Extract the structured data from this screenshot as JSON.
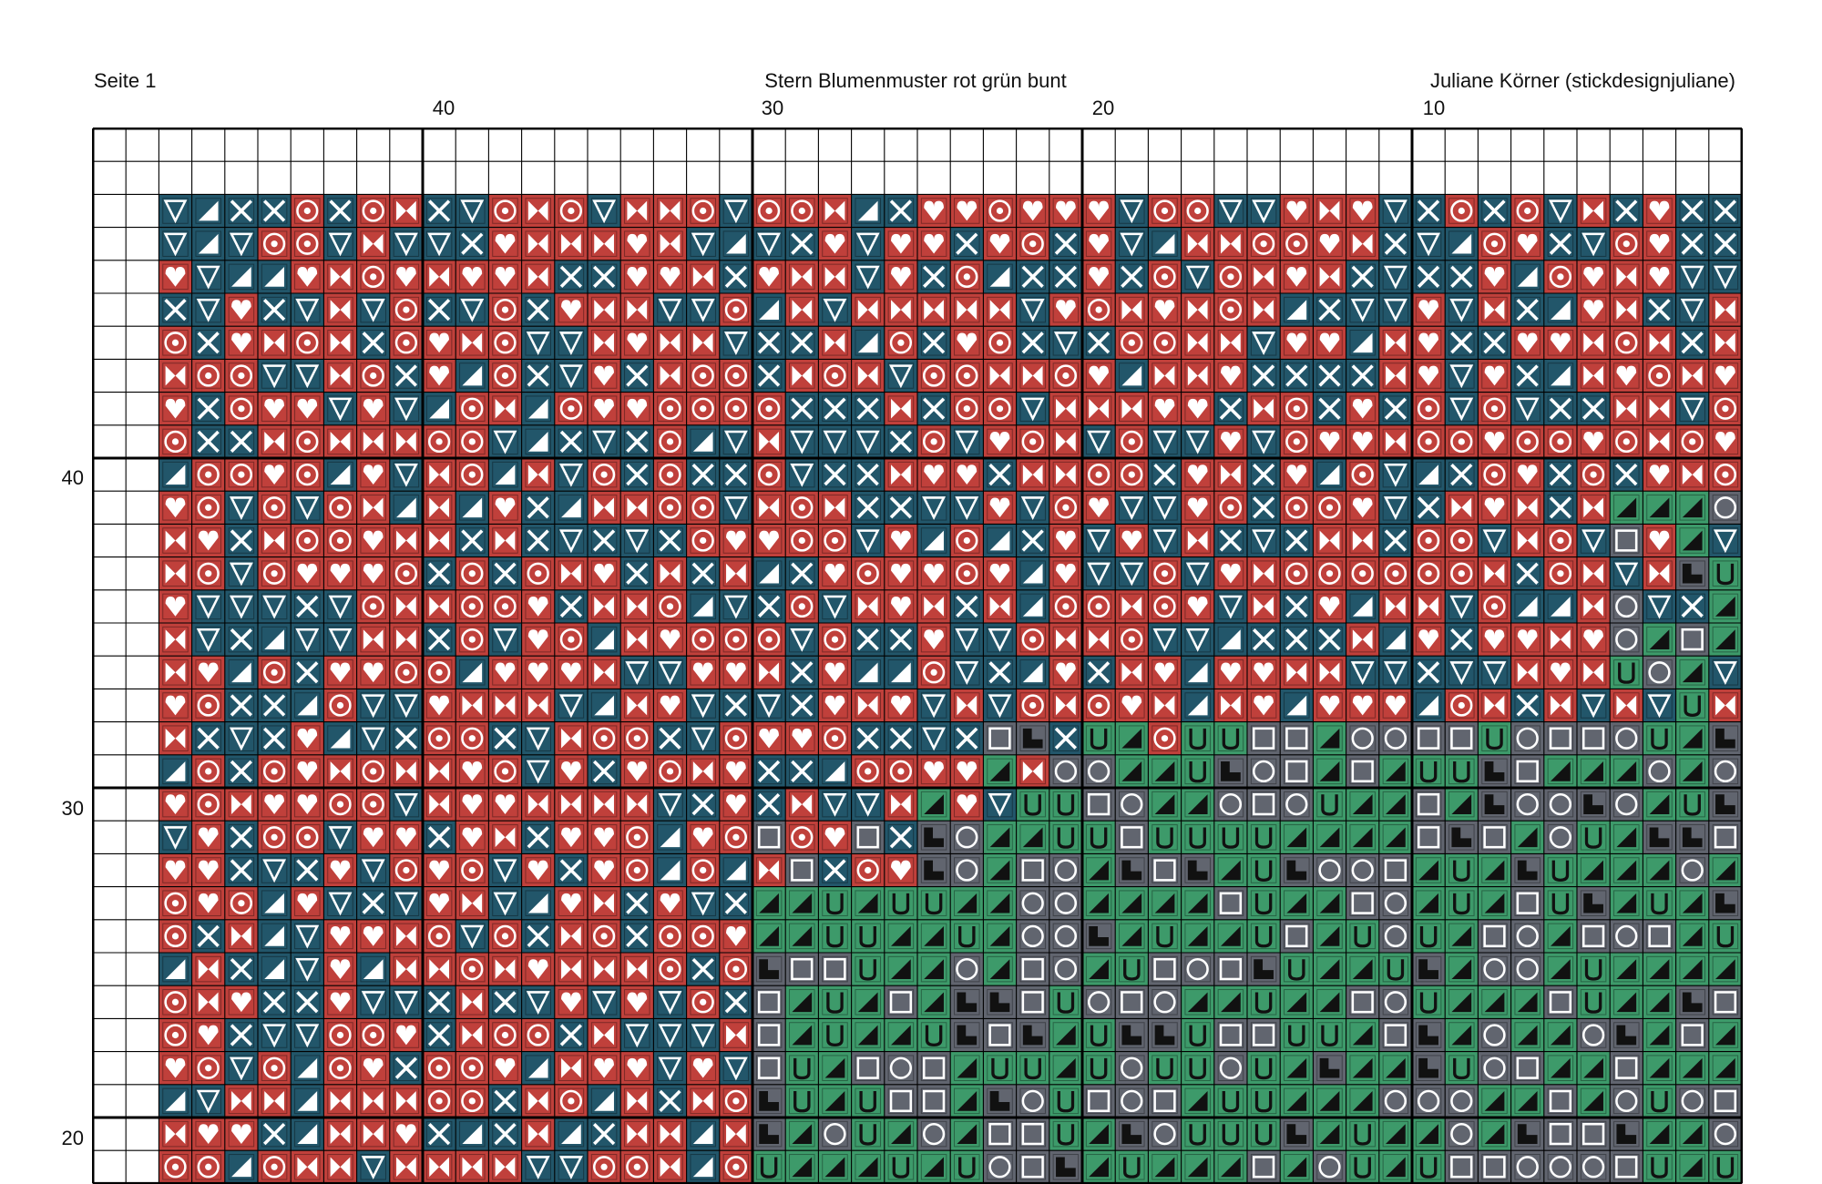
{
  "header": {
    "page_label": "Seite 1",
    "title": "Stern Blumenmuster rot grün bunt",
    "author": "Juliane Körner (stickdesignjuliane)"
  },
  "column_numbers": [
    "40",
    "30",
    "20",
    "10"
  ],
  "row_numbers": [
    "40",
    "30",
    "20"
  ],
  "palette": {
    "red": "#c0403b",
    "teal": "#22566a",
    "green": "#3d9a6a",
    "gray": "#61656f",
    "grid_line": "#000000",
    "empty": "#ffffff"
  },
  "chart_icons": [
    "heart-symbol",
    "bowtie-symbol",
    "ring-symbol",
    "cross-symbol",
    "triangle-down-symbol",
    "corner-triangle-symbol",
    "u-symbol",
    "circle-symbol",
    "square-symbol",
    "l-block-symbol"
  ]
}
